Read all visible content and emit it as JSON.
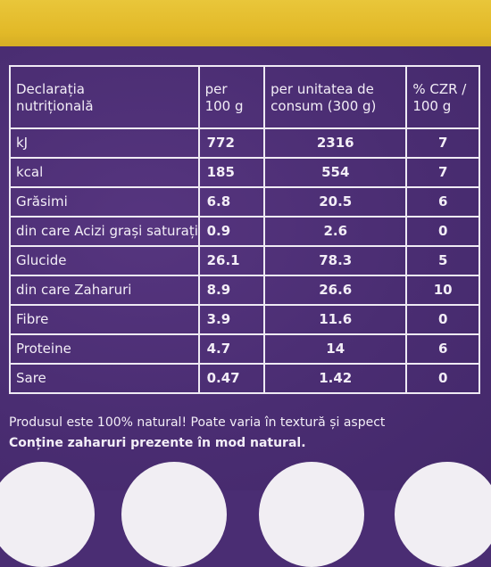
{
  "table": {
    "header": {
      "col1": [
        "Declarația",
        "nutrițională"
      ],
      "col2": [
        "per",
        "100 g"
      ],
      "col3": [
        "per unitatea de",
        "consum (300 g)"
      ],
      "col4": [
        "% CZR /",
        "100 g"
      ]
    },
    "rows": [
      {
        "label": "kJ",
        "per100": "772",
        "perUnit": "2316",
        "czr": "7"
      },
      {
        "label": "kcal",
        "per100": "185",
        "perUnit": "554",
        "czr": "7"
      },
      {
        "label": "Grăsimi",
        "per100": "6.8",
        "perUnit": "20.5",
        "czr": "6"
      },
      {
        "label": "din care Acizi grași saturați",
        "per100": "0.9",
        "perUnit": "2.6",
        "czr": "0"
      },
      {
        "label": "Glucide",
        "per100": "26.1",
        "perUnit": "78.3",
        "czr": "5"
      },
      {
        "label": "din care Zaharuri",
        "per100": "8.9",
        "perUnit": "26.6",
        "czr": "10"
      },
      {
        "label": "Fibre",
        "per100": "3.9",
        "perUnit": "11.6",
        "czr": "0"
      },
      {
        "label": "Proteine",
        "per100": "4.7",
        "perUnit": "14",
        "czr": "6"
      },
      {
        "label": "Sare",
        "per100": "0.47",
        "perUnit": "1.42",
        "czr": "0"
      }
    ]
  },
  "footer": {
    "line1": "Produsul este 100% natural! Poate varia în textură și aspect",
    "line2": "Conține zaharuri prezente în mod natural."
  },
  "colors": {
    "band": "#e2b928",
    "background": "#4a2d73",
    "text": "#f3eef7",
    "circles": "#f1eef3"
  }
}
